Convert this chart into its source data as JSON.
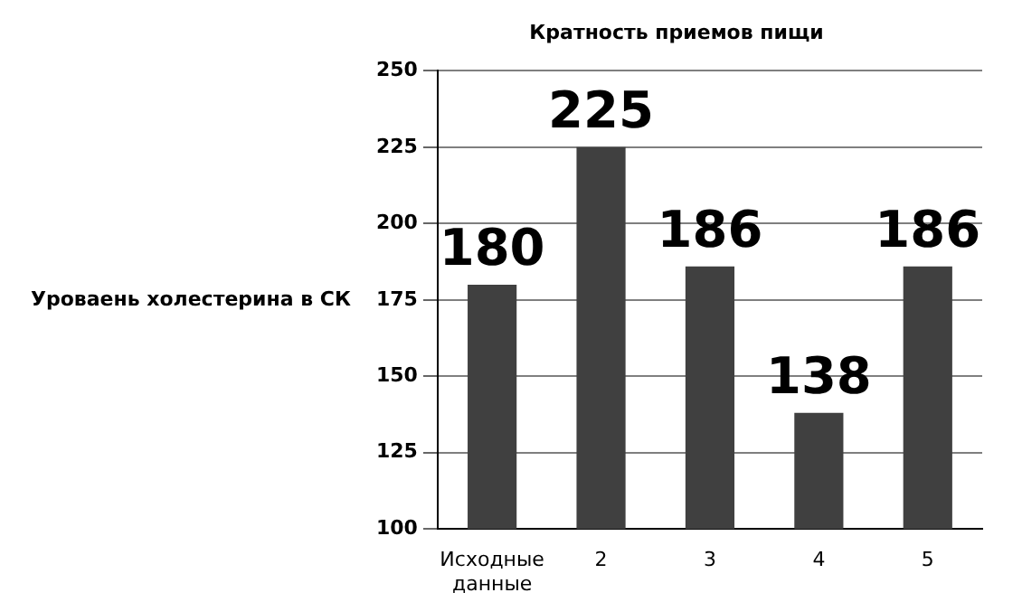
{
  "chart_data": {
    "type": "bar",
    "title": "Кратность приемов пищи",
    "ylabel": "Уроваень холестерина в СК",
    "categories": [
      "Исходные данные",
      "2",
      "3",
      "4",
      "5"
    ],
    "values": [
      180,
      225,
      186,
      138,
      186
    ],
    "color": "#404040",
    "ylim": [
      100,
      250
    ],
    "yticks": [
      100,
      125,
      150,
      175,
      200,
      225,
      250
    ],
    "grid": "y",
    "data_labels": true
  }
}
